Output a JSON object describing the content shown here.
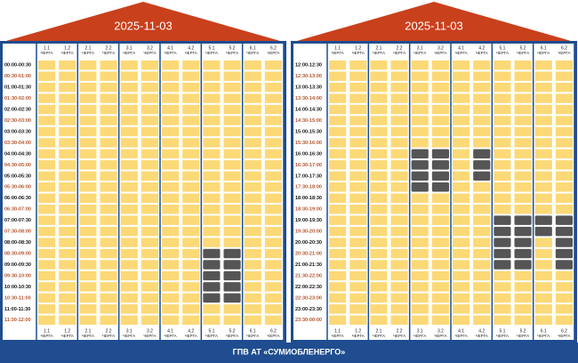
{
  "footer": "ГПВ АТ «СУМИОБЛЕНЕРГО»",
  "columns": [
    {
      "group": "1.1",
      "label": "ЧЕРГА"
    },
    {
      "group": "1.2",
      "label": "ЧЕРГА"
    },
    {
      "group": "2.1",
      "label": "ЧЕРГА"
    },
    {
      "group": "2.2",
      "label": "ЧЕРГА"
    },
    {
      "group": "3.1",
      "label": "ЧЕРГА"
    },
    {
      "group": "3.2",
      "label": "ЧЕРГА"
    },
    {
      "group": "4.1",
      "label": "ЧЕРГА"
    },
    {
      "group": "4.2",
      "label": "ЧЕРГА"
    },
    {
      "group": "5.1",
      "label": "ЧЕРГА"
    },
    {
      "group": "5.2",
      "label": "ЧЕРГА"
    },
    {
      "group": "6.1",
      "label": "ЧЕРГА"
    },
    {
      "group": "6.2",
      "label": "ЧЕРГА"
    }
  ],
  "panels": [
    {
      "date": "2025-11-03",
      "rows": [
        {
          "time": "00:00-00:30",
          "off": []
        },
        {
          "time": "00:30-01:00",
          "off": []
        },
        {
          "time": "01:00-01:30",
          "off": []
        },
        {
          "time": "01:30-02:00",
          "off": []
        },
        {
          "time": "02:00-02:30",
          "off": []
        },
        {
          "time": "02:30-03:00",
          "off": []
        },
        {
          "time": "03:00-03:30",
          "off": []
        },
        {
          "time": "03:30-04:00",
          "off": []
        },
        {
          "time": "04:00-04:30",
          "off": []
        },
        {
          "time": "04:30-05:00",
          "off": []
        },
        {
          "time": "05:00-05:30",
          "off": []
        },
        {
          "time": "05:30-06:00",
          "off": []
        },
        {
          "time": "06:00-06:30",
          "off": []
        },
        {
          "time": "06:30-07:00",
          "off": []
        },
        {
          "time": "07:00-07:30",
          "off": []
        },
        {
          "time": "07:30-08:00",
          "off": []
        },
        {
          "time": "08:00-08:30",
          "off": []
        },
        {
          "time": "08:30-09:00",
          "off": [
            8,
            9
          ]
        },
        {
          "time": "09:00-09:30",
          "off": [
            8,
            9
          ]
        },
        {
          "time": "09:30-10:00",
          "off": [
            8,
            9
          ]
        },
        {
          "time": "10:00-10:30",
          "off": [
            8,
            9
          ]
        },
        {
          "time": "10:30-11:00",
          "off": [
            8,
            9
          ]
        },
        {
          "time": "11:00-11:30",
          "off": []
        },
        {
          "time": "11:30-12:00",
          "off": []
        }
      ]
    },
    {
      "date": "2025-11-03",
      "rows": [
        {
          "time": "12:00-12:30",
          "off": []
        },
        {
          "time": "12:30-13:00",
          "off": []
        },
        {
          "time": "13:00-13:30",
          "off": []
        },
        {
          "time": "13:30-14:00",
          "off": []
        },
        {
          "time": "14:00-14:30",
          "off": []
        },
        {
          "time": "14:30-15:00",
          "off": []
        },
        {
          "time": "15:00-15:30",
          "off": []
        },
        {
          "time": "15:30-16:00",
          "off": []
        },
        {
          "time": "16:00-16:30",
          "off": [
            4,
            5,
            7
          ]
        },
        {
          "time": "16:30-17:00",
          "off": [
            4,
            5,
            7
          ]
        },
        {
          "time": "17:00-17:30",
          "off": [
            4,
            5,
            7
          ]
        },
        {
          "time": "17:30-18:00",
          "off": [
            4,
            5
          ]
        },
        {
          "time": "18:00-18:30",
          "off": []
        },
        {
          "time": "18:30-19:00",
          "off": []
        },
        {
          "time": "19:00-19:30",
          "off": [
            8,
            9,
            10,
            11
          ]
        },
        {
          "time": "19:30-20:00",
          "off": [
            8,
            9,
            10,
            11
          ]
        },
        {
          "time": "20:00-20:30",
          "off": [
            8,
            9,
            11
          ]
        },
        {
          "time": "20:30-21:00",
          "off": [
            8,
            9,
            11
          ]
        },
        {
          "time": "21:00-21:30",
          "off": [
            8,
            9,
            11
          ]
        },
        {
          "time": "21:30-22:00",
          "off": []
        },
        {
          "time": "22:00-22:30",
          "off": []
        },
        {
          "time": "22:30-23:00",
          "off": []
        },
        {
          "time": "23:00-23:30",
          "off": []
        },
        {
          "time": "23:30-00:00",
          "off": []
        }
      ]
    }
  ]
}
